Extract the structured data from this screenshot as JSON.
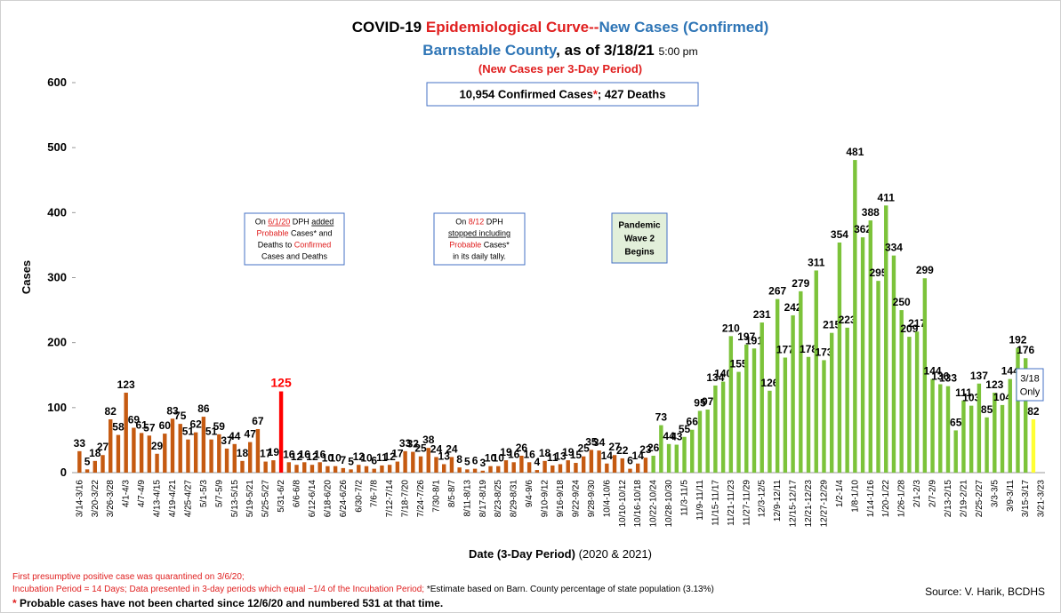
{
  "chart_data": {
    "type": "bar",
    "title": [
      {
        "text": "COVID-19 ",
        "color": "#000000"
      },
      {
        "text": "Epidemiological Curve--",
        "color": "#e02020"
      },
      {
        "text": "New Cases",
        "color": "#2e75b6"
      },
      {
        "text": " (Confirmed)",
        "color": "#2e75b6"
      }
    ],
    "subtitle": [
      {
        "text": "Barnstable County",
        "color": "#2e75b6"
      },
      {
        "text": ", as of 3/18/21 ",
        "color": "#000000"
      },
      {
        "text": "5:00 pm",
        "color": "#000000",
        "small": true
      }
    ],
    "note": [
      {
        "text": "(New Cases per 3-Day Period)",
        "color": "#e02020"
      }
    ],
    "ylabel": "Cases",
    "xlabel": [
      {
        "text": "Date (3-Day Period)",
        "color": "#000000",
        "bold": true
      },
      {
        "text": " (2020 & 2021)",
        "color": "#000000"
      }
    ],
    "categories": [
      "3/14-3/16",
      null,
      "3/20-3/22",
      null,
      "3/26-3/28",
      null,
      "4/1-4/3",
      null,
      "4/7-4/9",
      null,
      "4/13-4/15",
      null,
      "4/19-4/21",
      null,
      "4/25-4/27",
      null,
      "5/1-5/3",
      null,
      "5/7-5/9",
      null,
      "5/13-5/15",
      null,
      "5/19-5/21",
      null,
      "5/25-5/27",
      null,
      "5/31-6/2",
      null,
      "6/6-6/8",
      null,
      "6/12-6/14",
      null,
      "6/18-6/20",
      null,
      "6/24-6/26",
      null,
      "6/30-7/2",
      null,
      "7/6-7/8",
      null,
      "7/12-7/14",
      null,
      "7/18-7/20",
      null,
      "7/24-7/26",
      null,
      "7/30-8/1",
      null,
      "8/5-8/7",
      null,
      "8/11-8/13",
      null,
      "8/17-8/19",
      null,
      "8/23-8/25",
      null,
      "8/29-8/31",
      null,
      "9/4-9/6",
      null,
      "9/10-9/12",
      null,
      "9/16-9/18",
      null,
      "9/22-9/24",
      null,
      "9/28-9/30",
      null,
      "10/4-10/6",
      null,
      "10/10-10/12",
      null,
      "10/16-10/18",
      null,
      "10/22-10/24",
      null,
      "10/28-10/30",
      null,
      "11/3-11/5",
      null,
      "11/9-11/11",
      null,
      "11/15-11/17",
      null,
      "11/21-11/23",
      null,
      "11/27-11/29",
      null,
      "12/3-12/5",
      null,
      "12/9-12/11",
      null,
      "12/15-12/17",
      null,
      "12/21-12/23",
      null,
      "12/27-12/29",
      null,
      "1/2-1/4",
      null,
      "1/8-1/10",
      null,
      "1/14-1/16",
      null,
      "1/20-1/22",
      null,
      "1/26-1/28",
      null,
      "2/1-2/3",
      null,
      "2/7-2/9",
      null,
      "2/13-2/15",
      null,
      "2/19-2/21",
      null,
      "2/25-2/27",
      null,
      "3/3-3/5",
      null,
      "3/9-3/11",
      null,
      "3/15-3/17",
      null,
      "3/21-3/23"
    ],
    "values": [
      33,
      5,
      18,
      27,
      82,
      58,
      123,
      69,
      61,
      57,
      29,
      60,
      83,
      75,
      51,
      62,
      86,
      51,
      59,
      37,
      44,
      18,
      47,
      67,
      17,
      19,
      125,
      16,
      12,
      16,
      12,
      16,
      10,
      10,
      7,
      5,
      12,
      10,
      6,
      11,
      12,
      17,
      33,
      32,
      25,
      38,
      24,
      13,
      24,
      8,
      5,
      6,
      3,
      10,
      10,
      19,
      16,
      26,
      16,
      4,
      18,
      11,
      13,
      19,
      15,
      25,
      35,
      34,
      14,
      27,
      22,
      6,
      14,
      23,
      26,
      73,
      44,
      43,
      55,
      66,
      95,
      97,
      134,
      140,
      210,
      155,
      197,
      191,
      231,
      126,
      267,
      177,
      242,
      279,
      178,
      311,
      173,
      215,
      354,
      223,
      481,
      362,
      388,
      295,
      411,
      334,
      250,
      209,
      217,
      299,
      144,
      136,
      133,
      65,
      111,
      103,
      137,
      85,
      123,
      104,
      144,
      192,
      176,
      82,
      null
    ],
    "colors": [
      "#c55a11",
      "#c55a11",
      "#c55a11",
      "#c55a11",
      "#c55a11",
      "#c55a11",
      "#c55a11",
      "#c55a11",
      "#c55a11",
      "#c55a11",
      "#c55a11",
      "#c55a11",
      "#c55a11",
      "#c55a11",
      "#c55a11",
      "#c55a11",
      "#c55a11",
      "#c55a11",
      "#c55a11",
      "#c55a11",
      "#c55a11",
      "#c55a11",
      "#c55a11",
      "#c55a11",
      "#c55a11",
      "#c55a11",
      "#ff0000",
      "#c55a11",
      "#c55a11",
      "#c55a11",
      "#c55a11",
      "#c55a11",
      "#c55a11",
      "#c55a11",
      "#c55a11",
      "#c55a11",
      "#c55a11",
      "#c55a11",
      "#c55a11",
      "#c55a11",
      "#c55a11",
      "#c55a11",
      "#c55a11",
      "#c55a11",
      "#c55a11",
      "#c55a11",
      "#c55a11",
      "#c55a11",
      "#c55a11",
      "#c55a11",
      "#c55a11",
      "#c55a11",
      "#c55a11",
      "#c55a11",
      "#c55a11",
      "#c55a11",
      "#c55a11",
      "#c55a11",
      "#c55a11",
      "#c55a11",
      "#c55a11",
      "#c55a11",
      "#c55a11",
      "#c55a11",
      "#c55a11",
      "#c55a11",
      "#c55a11",
      "#c55a11",
      "#c55a11",
      "#c55a11",
      "#c55a11",
      "#c55a11",
      "#c55a11",
      "#c55a11",
      "#7cc33a",
      "#7cc33a",
      "#7cc33a",
      "#7cc33a",
      "#7cc33a",
      "#7cc33a",
      "#7cc33a",
      "#7cc33a",
      "#7cc33a",
      "#7cc33a",
      "#7cc33a",
      "#7cc33a",
      "#7cc33a",
      "#7cc33a",
      "#7cc33a",
      "#7cc33a",
      "#7cc33a",
      "#7cc33a",
      "#7cc33a",
      "#7cc33a",
      "#7cc33a",
      "#7cc33a",
      "#7cc33a",
      "#7cc33a",
      "#7cc33a",
      "#7cc33a",
      "#7cc33a",
      "#7cc33a",
      "#7cc33a",
      "#7cc33a",
      "#7cc33a",
      "#7cc33a",
      "#7cc33a",
      "#7cc33a",
      "#7cc33a",
      "#7cc33a",
      "#7cc33a",
      "#7cc33a",
      "#7cc33a",
      "#7cc33a",
      "#7cc33a",
      "#7cc33a",
      "#7cc33a",
      "#7cc33a",
      "#7cc33a",
      "#7cc33a",
      "#7cc33a",
      "#7cc33a",
      "#7cc33a",
      "#ffff33",
      "#7cc33a"
    ],
    "ylim": [
      0,
      600
    ],
    "yticks": [
      0,
      100,
      200,
      300,
      400,
      500,
      600
    ],
    "grid": false,
    "annotations": [
      {
        "lines": [
          [
            {
              "text": "10,954 Confirmed Cases",
              "color": "#000000"
            },
            {
              "text": "*",
              "color": "#e02020"
            },
            {
              "text": "; 427 Deaths",
              "color": "#000000"
            }
          ]
        ]
      },
      {
        "lines": [
          [
            {
              "text": "On ",
              "color": "#000000"
            },
            {
              "text": "6/1/20",
              "color": "#e02020",
              "underline": true
            },
            {
              "text": " DPH ",
              "color": "#000000"
            },
            {
              "text": "added",
              "color": "#000000",
              "underline": true
            }
          ],
          [
            {
              "text": "Probable",
              "color": "#e02020"
            },
            {
              "text": " Cases* and",
              "color": "#000000"
            }
          ],
          [
            {
              "text": "Deaths to ",
              "color": "#000000"
            },
            {
              "text": "Confirmed",
              "color": "#e02020"
            }
          ],
          [
            {
              "text": "Cases and Deaths",
              "color": "#000000"
            }
          ]
        ]
      },
      {
        "lines": [
          [
            {
              "text": "On ",
              "color": "#000000"
            },
            {
              "text": "8/12",
              "color": "#e02020"
            },
            {
              "text": " DPH",
              "color": "#000000"
            }
          ],
          [
            {
              "text": "stopped including",
              "color": "#000000",
              "underline": true
            }
          ],
          [
            {
              "text": "Probable",
              "color": "#e02020"
            },
            {
              "text": " Cases*",
              "color": "#000000"
            }
          ],
          [
            {
              "text": "in its daily tally.",
              "color": "#000000"
            }
          ]
        ]
      },
      {
        "fill": "#e2efda",
        "lines": [
          [
            {
              "text": "Pandemic",
              "color": "#000000",
              "bold": true
            }
          ],
          [
            {
              "text": "Wave 2",
              "color": "#000000",
              "bold": true
            }
          ],
          [
            {
              "text": "Begins",
              "color": "#000000",
              "bold": true
            }
          ]
        ]
      },
      {
        "lines": [
          [
            {
              "text": "3/18",
              "color": "#000000"
            }
          ],
          [
            {
              "text": "Only",
              "color": "#000000"
            }
          ]
        ]
      }
    ],
    "footnotes": [
      [
        {
          "text": "First presumptive positive case was quarantined on 3/6/20;",
          "color": "#e02020"
        }
      ],
      [
        {
          "text": "Incubation Period = 14 Days; Data presented in 3-day periods which equal ~1/4 of the Incubation Period;",
          "color": "#e02020"
        },
        {
          "text": " *Estimate based on Barn. County percentage of state population (3.13%)",
          "color": "#000000"
        }
      ],
      [
        {
          "text": "*",
          "color": "#e02020",
          "bold": true
        },
        {
          "text": " Probable cases have not been charted since 12/6/20 and numbered 531 at that time.",
          "color": "#000000",
          "bold": true
        }
      ]
    ],
    "source": "Source: V. Harik, BCDHS"
  }
}
